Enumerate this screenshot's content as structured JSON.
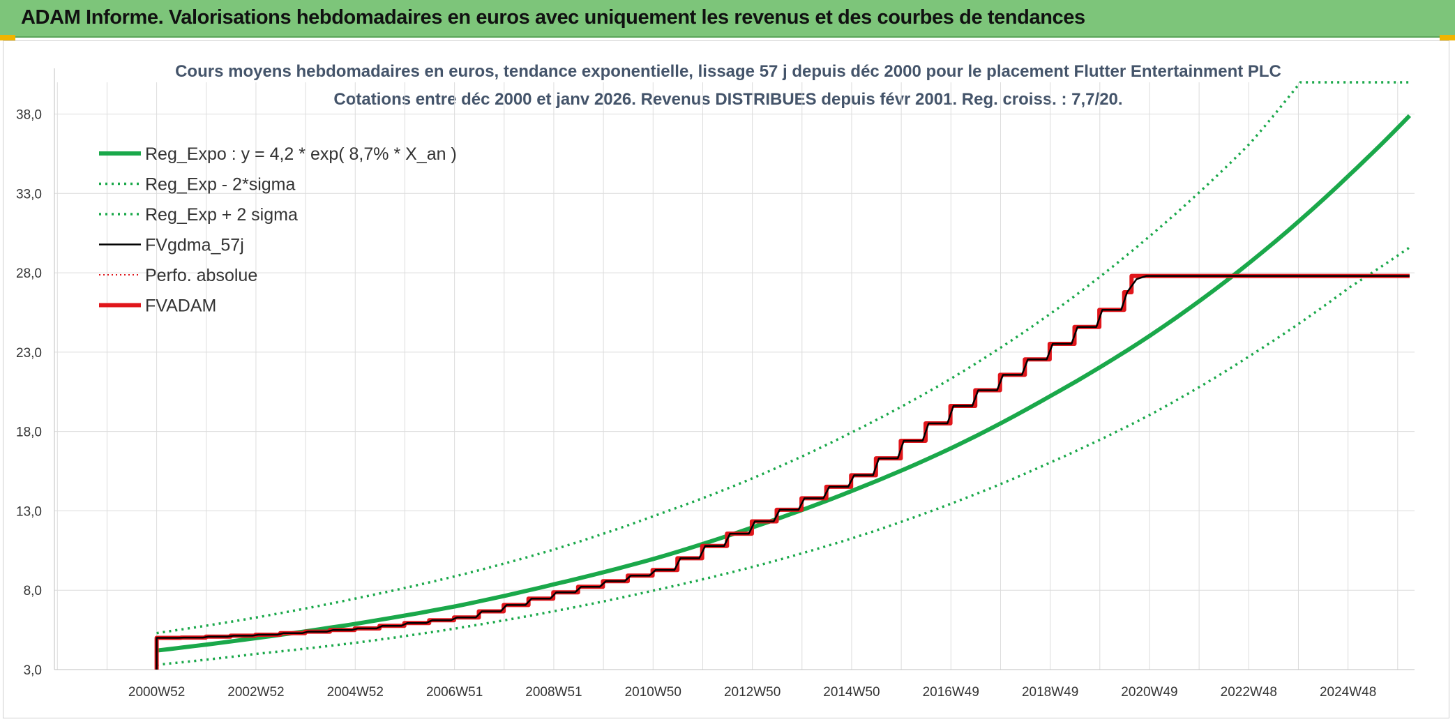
{
  "banner": {
    "title": "ADAM Informe. Valorisations hebdomadaires en euros avec uniquement les revenus et des courbes de tendances"
  },
  "chart_data": {
    "type": "line",
    "title": "Cours moyens hebdomadaires en euros, tendance exponentielle, lissage 57 j depuis déc 2000 pour le placement Flutter Entertainment PLC",
    "subtitle": "Cotations entre déc 2000 et janv 2026. Revenus DISTRIBUES depuis févr 2001. Reg. croiss. : 7,7/20.",
    "xlabel": "",
    "ylabel": "",
    "ylim": [
      3.0,
      40.0
    ],
    "xlim": [
      1998.9,
      2026.3
    ],
    "y_ticks": [
      "3,0",
      "8,0",
      "13,0",
      "18,0",
      "23,0",
      "28,0",
      "33,0",
      "38,0"
    ],
    "x_ticks": [
      "2000W52",
      "2002W52",
      "2004W52",
      "2006W51",
      "2008W51",
      "2010W50",
      "2012W50",
      "2014W50",
      "2016W49",
      "2018W49",
      "2020W49",
      "2022W48",
      "2024W48"
    ],
    "x_tick_years": [
      2000.96,
      2002.96,
      2004.96,
      2006.96,
      2008.96,
      2010.96,
      2012.96,
      2014.96,
      2016.96,
      2018.96,
      2020.96,
      2022.96,
      2024.96
    ],
    "grid": true,
    "legend_position": "top-left",
    "series": [
      {
        "name": "Reg_Expo : y = 4,2 * exp( 8,7% *  X_an )",
        "color": "#1aa84a",
        "style": "solid-thick",
        "x": [
          2000.96,
          2003,
          2005,
          2007,
          2009,
          2011,
          2013,
          2015,
          2017,
          2019,
          2021,
          2023,
          2025,
          2026.2
        ],
        "y": [
          4.2,
          5.0,
          5.9,
          7.0,
          8.4,
          10.0,
          12.0,
          14.3,
          17.0,
          20.3,
          24.1,
          28.7,
          34.2,
          37.9
        ]
      },
      {
        "name": "Reg_Exp - 2*sigma",
        "color": "#1aa84a",
        "style": "dotted",
        "x": [
          2000.96,
          2003,
          2005,
          2007,
          2009,
          2011,
          2013,
          2015,
          2017,
          2019,
          2021,
          2023,
          2025,
          2026.2
        ],
        "y": [
          3.3,
          4.0,
          4.7,
          5.6,
          6.7,
          8.0,
          9.5,
          11.3,
          13.5,
          16.1,
          19.1,
          22.8,
          27.1,
          29.6
        ]
      },
      {
        "name": "Reg_Exp + 2 sigma",
        "color": "#1aa84a",
        "style": "dotted",
        "x": [
          2000.96,
          2003,
          2005,
          2007,
          2009,
          2011,
          2013,
          2015,
          2017,
          2019,
          2021,
          2023,
          2024.0,
          2026.2
        ],
        "y": [
          5.3,
          6.3,
          7.5,
          8.9,
          10.6,
          12.7,
          15.1,
          18.0,
          21.4,
          25.5,
          30.4,
          36.2,
          40.0,
          40.0
        ]
      },
      {
        "name": "FVgdma_57j",
        "color": "#000000",
        "style": "solid-thin",
        "x": [
          2000.96,
          2001.3,
          2003,
          2005,
          2007,
          2009,
          2011,
          2013,
          2015,
          2017,
          2019,
          2020.3,
          2020.9,
          2026.2
        ],
        "y": [
          3.0,
          5.0,
          5.2,
          5.6,
          6.3,
          7.9,
          9.3,
          12.4,
          15.3,
          19.7,
          23.6,
          26.4,
          27.8,
          27.8
        ]
      },
      {
        "name": "Perfo. absolue",
        "color": "#e0161b",
        "style": "dotted-thin",
        "x": [
          2000.96,
          2001.0,
          2026.2
        ],
        "y": [
          3.0,
          5.0,
          27.8
        ]
      },
      {
        "name": "FVADAM",
        "color": "#e0161b",
        "style": "solid-thick",
        "x": [
          2000.96,
          2000.97,
          2026.2
        ],
        "y": [
          3.0,
          5.0,
          27.8
        ]
      }
    ]
  }
}
